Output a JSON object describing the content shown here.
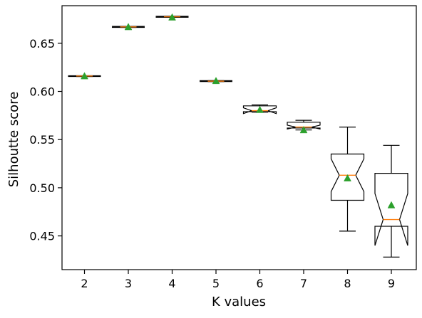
{
  "chart_data": {
    "type": "boxplot",
    "title": "",
    "xlabel": "K values",
    "ylabel": "Silhoutte score",
    "ylim": [
      0.415,
      0.689
    ],
    "yticks": [
      0.45,
      0.5,
      0.55,
      0.6,
      0.65
    ],
    "ytick_labels": [
      "0.45",
      "0.50",
      "0.55",
      "0.60",
      "0.65"
    ],
    "categories": [
      "2",
      "3",
      "4",
      "5",
      "6",
      "7",
      "8",
      "9"
    ],
    "notched": true,
    "showmeans": true,
    "median_color": "#ff7f0e",
    "mean_marker_color": "#2ca02c",
    "boxes": [
      {
        "k": "2",
        "whisker_low": 0.6155,
        "q1": 0.6155,
        "median": 0.616,
        "q3": 0.6163,
        "whisker_high": 0.6163,
        "mean": 0.616,
        "notch_low": 0.6155,
        "notch_high": 0.6163
      },
      {
        "k": "3",
        "whisker_low": 0.6665,
        "q1": 0.6665,
        "median": 0.667,
        "q3": 0.6675,
        "whisker_high": 0.6675,
        "mean": 0.667,
        "notch_low": 0.6665,
        "notch_high": 0.6675
      },
      {
        "k": "4",
        "whisker_low": 0.677,
        "q1": 0.677,
        "median": 0.6775,
        "q3": 0.678,
        "whisker_high": 0.678,
        "mean": 0.677,
        "notch_low": 0.677,
        "notch_high": 0.678
      },
      {
        "k": "5",
        "whisker_low": 0.6102,
        "q1": 0.6102,
        "median": 0.6107,
        "q3": 0.6112,
        "whisker_high": 0.6112,
        "mean": 0.611,
        "notch_low": 0.6102,
        "notch_high": 0.6112
      },
      {
        "k": "6",
        "whisker_low": 0.5785,
        "q1": 0.579,
        "median": 0.58,
        "q3": 0.585,
        "whisker_high": 0.586,
        "mean": 0.581,
        "notch_low": 0.577,
        "notch_high": 0.583
      },
      {
        "k": "7",
        "whisker_low": 0.56,
        "q1": 0.562,
        "median": 0.563,
        "q3": 0.568,
        "whisker_high": 0.57,
        "mean": 0.56,
        "notch_low": 0.561,
        "notch_high": 0.565
      },
      {
        "k": "8",
        "whisker_low": 0.455,
        "q1": 0.487,
        "median": 0.513,
        "q3": 0.535,
        "whisker_high": 0.563,
        "mean": 0.51,
        "notch_low": 0.496,
        "notch_high": 0.53
      },
      {
        "k": "9",
        "whisker_low": 0.428,
        "q1": 0.46,
        "median": 0.467,
        "q3": 0.515,
        "whisker_high": 0.544,
        "mean": 0.482,
        "notch_low": 0.44,
        "notch_high": 0.494
      }
    ]
  }
}
